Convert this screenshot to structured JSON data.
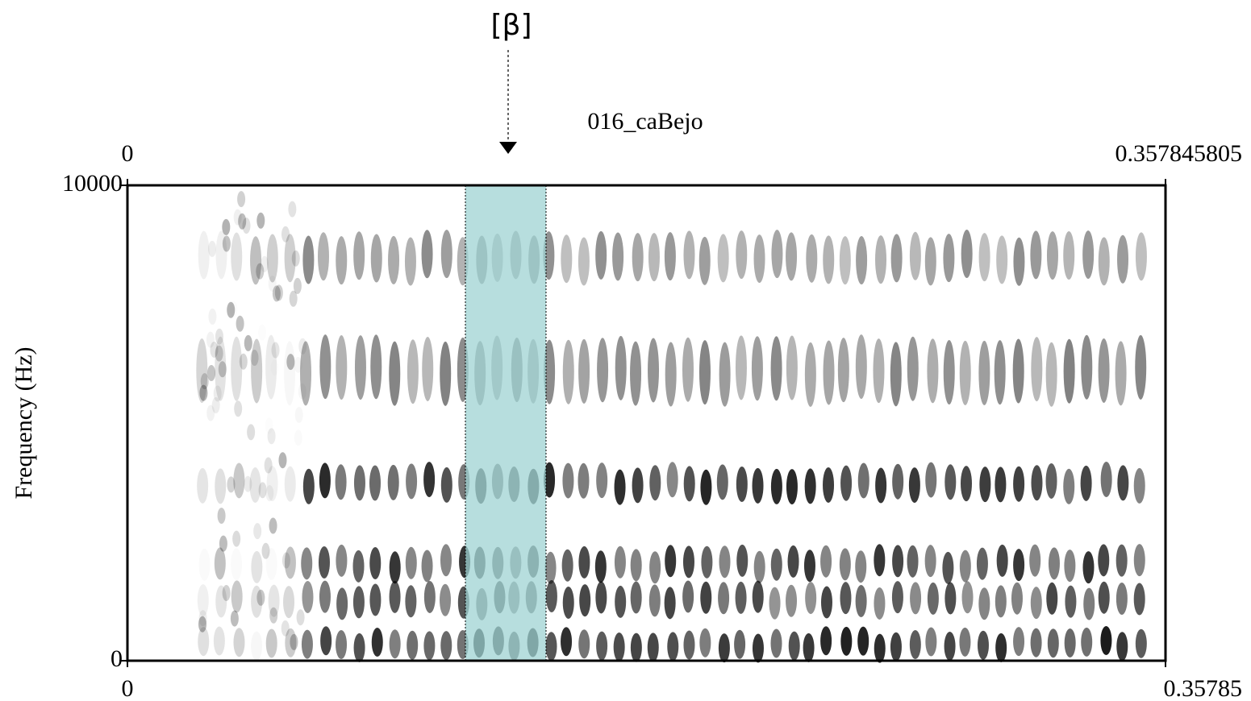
{
  "chart_data": {
    "type": "spectrogram",
    "title": "016_caBejo",
    "annotation": "[β]",
    "y_label": "Frequency (Hz)",
    "xlim": [
      0,
      0.357845805
    ],
    "ylim": [
      0,
      10000
    ],
    "yticks": [
      0,
      10000
    ],
    "xticks": [
      0,
      {
        "value": 0.35785,
        "label": "0.35785"
      }
    ],
    "xticks_top": [
      0,
      0.357845805
    ],
    "highlight": [
      0.1165,
      0.1443
    ],
    "highlight_color": "#9fd3d3"
  }
}
